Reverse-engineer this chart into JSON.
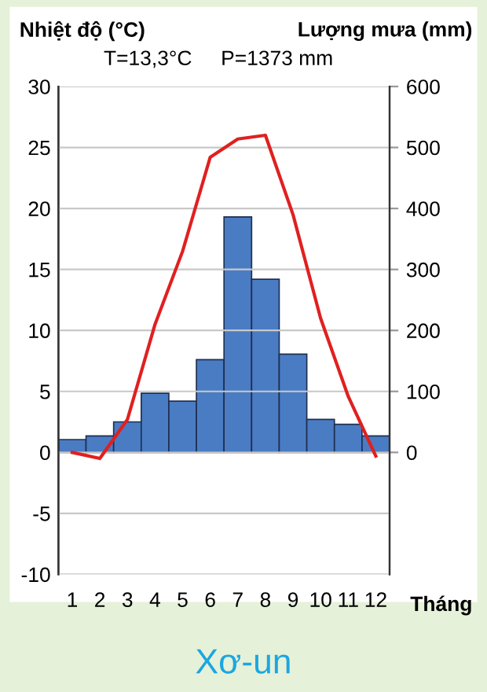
{
  "chart_data": {
    "type": "bar",
    "title": "Xơ-un",
    "xlabel": "Tháng",
    "ylabel": "Nhiệt độ (°C)",
    "y2label": "Lượng mưa (mm)",
    "annotations": [
      "T=13,3°C",
      "P=1373 mm"
    ],
    "categories": [
      "1",
      "2",
      "3",
      "4",
      "5",
      "6",
      "7",
      "8",
      "9",
      "10",
      "11",
      "12"
    ],
    "series": [
      {
        "axis": "y2",
        "color": "#4a7cc4",
        "values": [
          21,
          27,
          50,
          97,
          84,
          152,
          386,
          284,
          161,
          54,
          46,
          27
        ]
      },
      {
        "type": "line",
        "axis": "y",
        "color": "#e02020",
        "values": [
          0,
          -0.5,
          2.7,
          10.5,
          16.5,
          24.2,
          25.7,
          26,
          19.5,
          11,
          4.6,
          -0.3
        ]
      }
    ],
    "ylim": [
      -10,
      30
    ],
    "yticks": [
      -10,
      -5,
      0,
      5,
      10,
      15,
      20,
      25,
      30
    ],
    "y2lim": [
      -200,
      600
    ],
    "y2ticks": [
      0,
      100,
      200,
      300,
      400,
      500,
      600
    ],
    "grid": "y",
    "line_style": "solid"
  }
}
